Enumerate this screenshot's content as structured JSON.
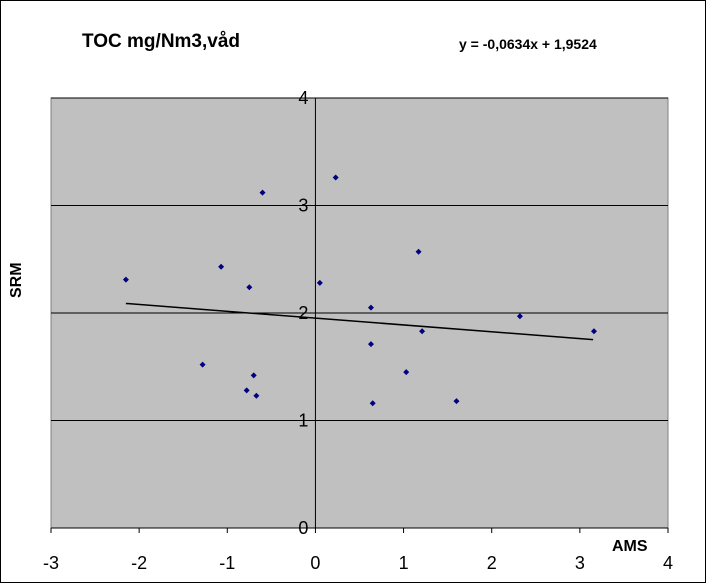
{
  "chart_data": {
    "type": "scatter",
    "title": "TOC mg/Nm3,våd",
    "xlabel": "AMS",
    "ylabel": "SRM",
    "xlim": [
      -3,
      4
    ],
    "ylim": [
      0,
      4
    ],
    "x_ticks": [
      -3,
      -2,
      -1,
      0,
      1,
      2,
      3,
      4
    ],
    "y_ticks": [
      0,
      1,
      2,
      3,
      4
    ],
    "grid": "horizontal",
    "plot_background": "#c0c0c0",
    "marker_color": "#000080",
    "trendline": {
      "label": "y = -0,0634x + 1,9524",
      "slope": -0.0634,
      "intercept": 1.9524,
      "x_range": [
        -2.15,
        3.15
      ]
    },
    "series": [
      {
        "points": [
          [
            -2.15,
            2.31
          ],
          [
            -1.28,
            1.52
          ],
          [
            -1.07,
            2.43
          ],
          [
            -0.78,
            1.28
          ],
          [
            -0.75,
            2.24
          ],
          [
            -0.7,
            1.42
          ],
          [
            -0.67,
            1.23
          ],
          [
            -0.6,
            3.12
          ],
          [
            0.05,
            2.28
          ],
          [
            0.23,
            3.26
          ],
          [
            0.63,
            2.05
          ],
          [
            0.63,
            1.71
          ],
          [
            0.65,
            1.16
          ],
          [
            1.03,
            1.45
          ],
          [
            1.17,
            2.57
          ],
          [
            1.21,
            1.83
          ],
          [
            1.6,
            1.18
          ],
          [
            2.32,
            1.97
          ],
          [
            3.16,
            1.83
          ]
        ]
      }
    ]
  }
}
